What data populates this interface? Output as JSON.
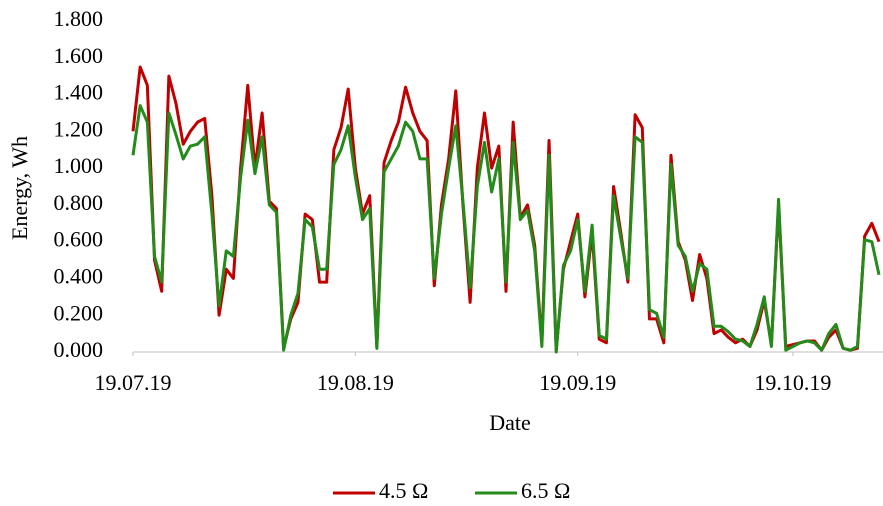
{
  "chart_data": {
    "type": "line",
    "x_label": "Date",
    "y_label": "Energy, Wh",
    "x": [
      "2019-07-19",
      "2019-07-20",
      "2019-07-21",
      "2019-07-22",
      "2019-07-23",
      "2019-07-24",
      "2019-07-25",
      "2019-07-26",
      "2019-07-27",
      "2019-07-28",
      "2019-07-29",
      "2019-07-30",
      "2019-07-31",
      "2019-08-01",
      "2019-08-02",
      "2019-08-03",
      "2019-08-04",
      "2019-08-05",
      "2019-08-06",
      "2019-08-07",
      "2019-08-08",
      "2019-08-09",
      "2019-08-10",
      "2019-08-11",
      "2019-08-12",
      "2019-08-13",
      "2019-08-14",
      "2019-08-15",
      "2019-08-16",
      "2019-08-17",
      "2019-08-18",
      "2019-08-19",
      "2019-08-20",
      "2019-08-21",
      "2019-08-22",
      "2019-08-23",
      "2019-08-24",
      "2019-08-25",
      "2019-08-26",
      "2019-08-27",
      "2019-08-28",
      "2019-08-29",
      "2019-08-30",
      "2019-08-31",
      "2019-09-01",
      "2019-09-02",
      "2019-09-03",
      "2019-09-04",
      "2019-09-05",
      "2019-09-06",
      "2019-09-07",
      "2019-09-08",
      "2019-09-09",
      "2019-09-10",
      "2019-09-11",
      "2019-09-12",
      "2019-09-13",
      "2019-09-14",
      "2019-09-15",
      "2019-09-16",
      "2019-09-17",
      "2019-09-18",
      "2019-09-19",
      "2019-09-20",
      "2019-09-21",
      "2019-09-22",
      "2019-09-23",
      "2019-09-24",
      "2019-09-25",
      "2019-09-26",
      "2019-09-27",
      "2019-09-28",
      "2019-09-29",
      "2019-09-30",
      "2019-10-01",
      "2019-10-02",
      "2019-10-03",
      "2019-10-04",
      "2019-10-05",
      "2019-10-06",
      "2019-10-07",
      "2019-10-08",
      "2019-10-09",
      "2019-10-10",
      "2019-10-11",
      "2019-10-12",
      "2019-10-13",
      "2019-10-14",
      "2019-10-15",
      "2019-10-16",
      "2019-10-17",
      "2019-10-18",
      "2019-10-19",
      "2019-10-20",
      "2019-10-21",
      "2019-10-22",
      "2019-10-23",
      "2019-10-24",
      "2019-10-25",
      "2019-10-26",
      "2019-10-27",
      "2019-10-28",
      "2019-10-29",
      "2019-10-30",
      "2019-10-31"
    ],
    "series": [
      {
        "name": "4.5 Ω",
        "color": "#c00000",
        "values": [
          1.2,
          1.55,
          1.45,
          0.5,
          0.33,
          1.5,
          1.35,
          1.13,
          1.2,
          1.25,
          1.27,
          0.85,
          0.2,
          0.45,
          0.4,
          1.0,
          1.45,
          1.0,
          1.3,
          0.82,
          0.78,
          0.02,
          0.18,
          0.27,
          0.75,
          0.72,
          0.38,
          0.38,
          1.1,
          1.22,
          1.43,
          1.0,
          0.75,
          0.85,
          0.03,
          1.03,
          1.15,
          1.25,
          1.44,
          1.3,
          1.2,
          1.15,
          0.36,
          0.8,
          1.05,
          1.42,
          0.8,
          0.27,
          1.0,
          1.3,
          1.0,
          1.12,
          0.33,
          1.25,
          0.73,
          0.8,
          0.58,
          0.05,
          1.15,
          0.01,
          0.45,
          0.6,
          0.75,
          0.3,
          0.65,
          0.07,
          0.05,
          0.9,
          0.65,
          0.38,
          1.29,
          1.22,
          0.18,
          0.18,
          0.05,
          1.07,
          0.6,
          0.5,
          0.28,
          0.53,
          0.4,
          0.1,
          0.12,
          0.08,
          0.05,
          0.07,
          0.03,
          0.12,
          0.28,
          0.04,
          0.8,
          0.03,
          0.04,
          0.05,
          0.06,
          0.06,
          0.01,
          0.08,
          0.12,
          0.02,
          0.01,
          0.02,
          0.63,
          0.7,
          0.6
        ]
      },
      {
        "name": "6.5 Ω",
        "color": "#238b1a",
        "values": [
          1.07,
          1.34,
          1.25,
          0.52,
          0.38,
          1.3,
          1.18,
          1.05,
          1.12,
          1.13,
          1.17,
          0.75,
          0.25,
          0.55,
          0.52,
          0.95,
          1.26,
          0.97,
          1.17,
          0.8,
          0.76,
          0.01,
          0.2,
          0.32,
          0.72,
          0.68,
          0.45,
          0.45,
          1.02,
          1.1,
          1.23,
          0.95,
          0.72,
          0.78,
          0.02,
          0.98,
          1.05,
          1.12,
          1.25,
          1.2,
          1.05,
          1.05,
          0.4,
          0.75,
          1.0,
          1.23,
          0.82,
          0.35,
          0.9,
          1.14,
          0.87,
          1.05,
          0.38,
          1.14,
          0.72,
          0.77,
          0.55,
          0.03,
          1.07,
          0.0,
          0.47,
          0.55,
          0.72,
          0.33,
          0.69,
          0.09,
          0.07,
          0.85,
          0.62,
          0.4,
          1.17,
          1.14,
          0.23,
          0.21,
          0.08,
          1.02,
          0.58,
          0.52,
          0.33,
          0.48,
          0.45,
          0.14,
          0.14,
          0.11,
          0.07,
          0.06,
          0.03,
          0.15,
          0.3,
          0.03,
          0.83,
          0.01,
          0.03,
          0.05,
          0.06,
          0.05,
          0.01,
          0.1,
          0.15,
          0.02,
          0.01,
          0.03,
          0.61,
          0.6,
          0.42
        ]
      }
    ],
    "xlim": [
      "2019-07-19",
      "2019-10-31"
    ],
    "xticks": [
      {
        "value": "2019-07-19",
        "label": "19.07.19"
      },
      {
        "value": "2019-08-19",
        "label": "19.08.19"
      },
      {
        "value": "2019-09-19",
        "label": "19.09.19"
      },
      {
        "value": "2019-10-19",
        "label": "19.10.19"
      }
    ],
    "ylim": [
      0,
      1.8
    ],
    "yticks": [
      {
        "value": 0,
        "label": "0.000"
      },
      {
        "value": 0.2,
        "label": "0.200"
      },
      {
        "value": 0.4,
        "label": "0.400"
      },
      {
        "value": 0.6,
        "label": "0.600"
      },
      {
        "value": 0.8,
        "label": "0.800"
      },
      {
        "value": 1.0,
        "label": "1.000"
      },
      {
        "value": 1.2,
        "label": "1.200"
      },
      {
        "value": 1.4,
        "label": "1.400"
      },
      {
        "value": 1.6,
        "label": "1.600"
      },
      {
        "value": 1.8,
        "label": "1.800"
      }
    ],
    "legend": "bottom",
    "grid": false
  }
}
